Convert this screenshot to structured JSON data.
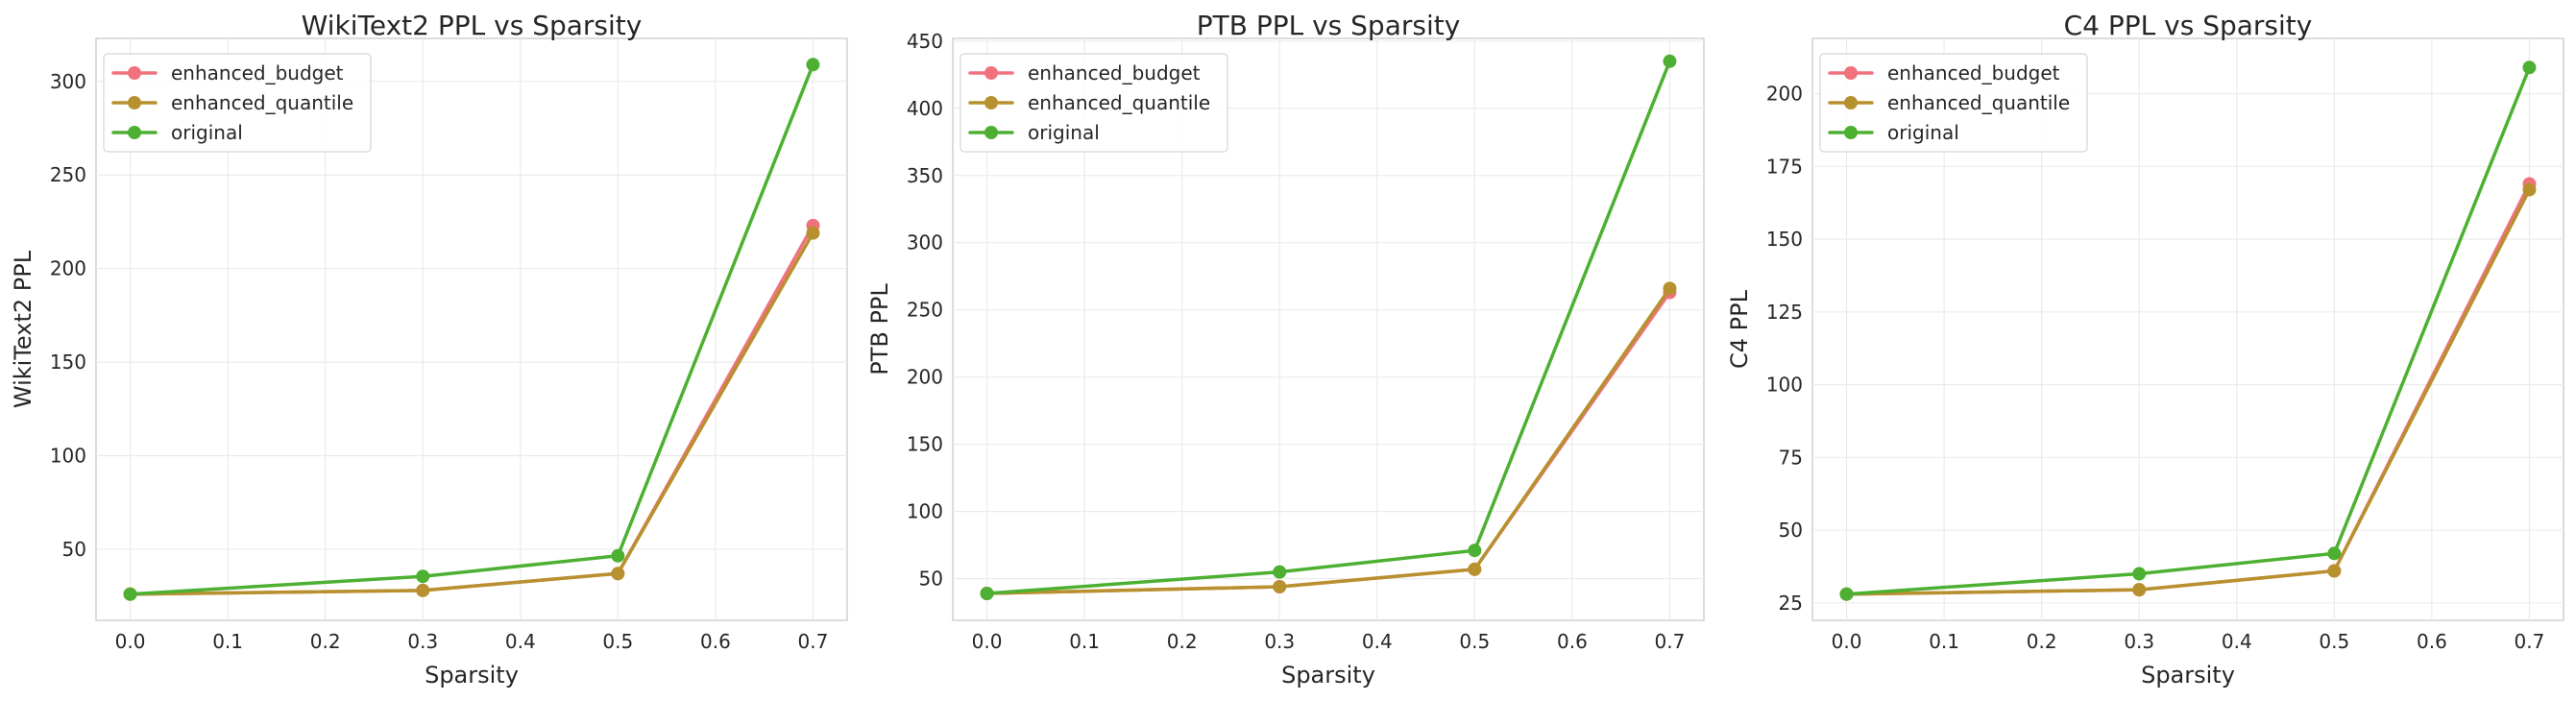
{
  "colors": {
    "enhanced_budget": "#f0727e",
    "enhanced_quantile": "#b8912f",
    "original": "#4db032"
  },
  "chart_data": [
    {
      "type": "line",
      "title": "WikiText2 PPL vs Sparsity",
      "xlabel": "Sparsity",
      "ylabel": "WikiText2 PPL",
      "xlim": [
        -0.035,
        0.735
      ],
      "ylim": [
        12,
        323
      ],
      "xticks": [
        "0.0",
        "0.1",
        "0.2",
        "0.3",
        "0.4",
        "0.5",
        "0.6",
        "0.7"
      ],
      "yticks": [
        "50",
        "100",
        "150",
        "200",
        "250",
        "300"
      ],
      "grid": true,
      "legend_position": "upper left",
      "x": [
        0.0,
        0.3,
        0.5,
        0.7
      ],
      "series": [
        {
          "name": "enhanced_budget",
          "values": [
            26.0,
            28.0,
            37.0,
            223.0
          ]
        },
        {
          "name": "enhanced_quantile",
          "values": [
            26.0,
            28.0,
            37.0,
            219.0
          ]
        },
        {
          "name": "original",
          "values": [
            26.0,
            35.5,
            46.5,
            309.0
          ]
        }
      ]
    },
    {
      "type": "line",
      "title": "PTB PPL vs Sparsity",
      "xlabel": "Sparsity",
      "ylabel": "PTB PPL",
      "xlim": [
        -0.035,
        0.735
      ],
      "ylim": [
        19,
        452
      ],
      "xticks": [
        "0.0",
        "0.1",
        "0.2",
        "0.3",
        "0.4",
        "0.5",
        "0.6",
        "0.7"
      ],
      "yticks": [
        "50",
        "100",
        "150",
        "200",
        "250",
        "300",
        "350",
        "400",
        "450"
      ],
      "grid": true,
      "legend_position": "upper left",
      "x": [
        0.0,
        0.3,
        0.5,
        0.7
      ],
      "series": [
        {
          "name": "enhanced_budget",
          "values": [
            39.0,
            44.0,
            57.0,
            263.0
          ]
        },
        {
          "name": "enhanced_quantile",
          "values": [
            39.0,
            44.0,
            57.0,
            266.0
          ]
        },
        {
          "name": "original",
          "values": [
            39.0,
            55.0,
            71.0,
            435.0
          ]
        }
      ]
    },
    {
      "type": "line",
      "title": "C4 PPL vs Sparsity",
      "xlabel": "Sparsity",
      "ylabel": "C4 PPL",
      "xlim": [
        -0.035,
        0.735
      ],
      "ylim": [
        19,
        219
      ],
      "xticks": [
        "0.0",
        "0.1",
        "0.2",
        "0.3",
        "0.4",
        "0.5",
        "0.6",
        "0.7"
      ],
      "yticks": [
        "25",
        "50",
        "75",
        "100",
        "125",
        "150",
        "175",
        "200"
      ],
      "grid": true,
      "legend_position": "upper left",
      "x": [
        0.0,
        0.3,
        0.5,
        0.7
      ],
      "series": [
        {
          "name": "enhanced_budget",
          "values": [
            28.0,
            29.5,
            36.0,
            169.0
          ]
        },
        {
          "name": "enhanced_quantile",
          "values": [
            28.0,
            29.5,
            36.0,
            167.0
          ]
        },
        {
          "name": "original",
          "values": [
            28.0,
            35.0,
            42.0,
            209.0
          ]
        }
      ]
    }
  ]
}
